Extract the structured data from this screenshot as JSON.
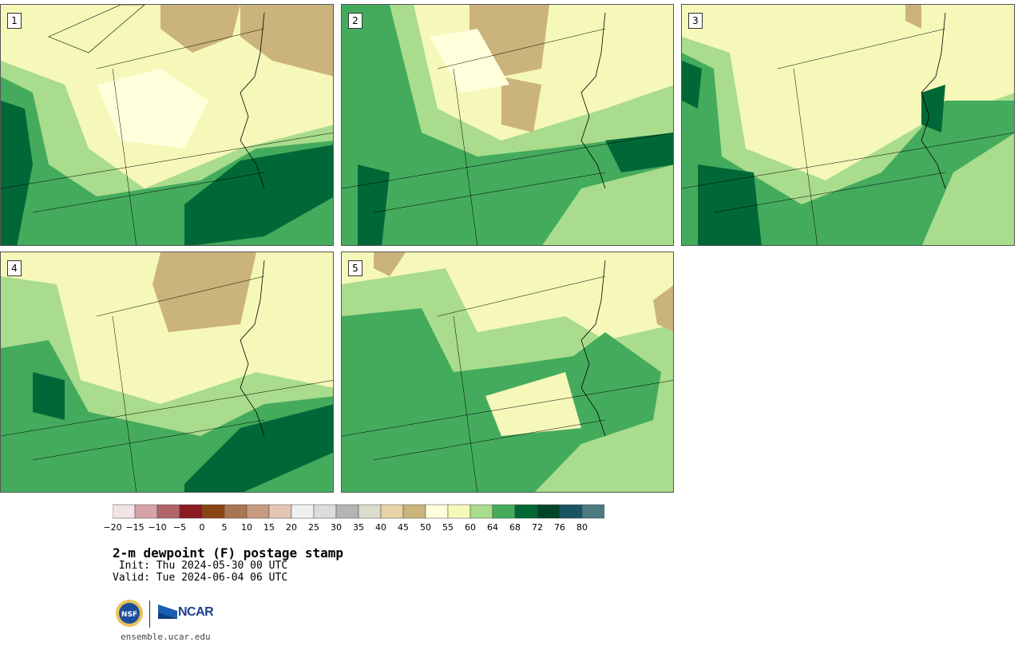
{
  "panels": [
    {
      "label": "1"
    },
    {
      "label": "2"
    },
    {
      "label": "3"
    },
    {
      "label": "4"
    },
    {
      "label": "5"
    }
  ],
  "colorbar": {
    "ticks": [
      "−20",
      "−15",
      "−10",
      "−5",
      "0",
      "5",
      "10",
      "15",
      "20",
      "25",
      "30",
      "35",
      "40",
      "45",
      "50",
      "55",
      "60",
      "64",
      "68",
      "72",
      "76",
      "80"
    ],
    "colors": [
      "#f2e4e4",
      "#d4a3a8",
      "#b06469",
      "#8c1a23",
      "#8a4517",
      "#aa7553",
      "#c89a82",
      "#e2c5b5",
      "#f0f0f0",
      "#dcdcdc",
      "#b4b4b4",
      "#dcdccc",
      "#e6d3a6",
      "#cbb47b",
      "#ffffdc",
      "#f5f8b8",
      "#a9dc8c",
      "#44ab5d",
      "#006837",
      "#004529",
      "#1b5461",
      "#4a7b80"
    ]
  },
  "title": "2-m dewpoint (F) postage stamp",
  "init_line": " Init: Thu 2024-05-30 00 UTC",
  "valid_line": "Valid: Tue 2024-06-04 06 UTC",
  "logos": {
    "nsf": "NSF",
    "ncar": "NCAR"
  },
  "site": "ensemble.ucar.edu"
}
